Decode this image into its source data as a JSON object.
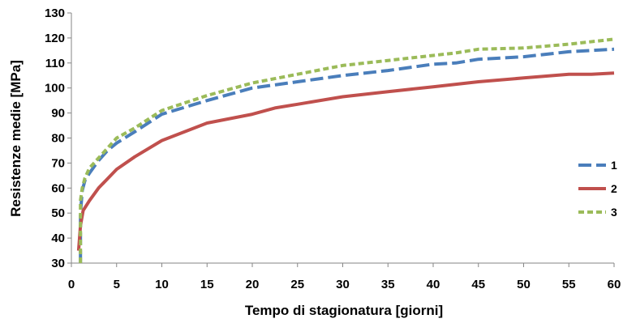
{
  "chart_data": {
    "type": "line",
    "xlabel": "Tempo di stagionatura [giorni]",
    "ylabel": "Resistenze medie [MPa]",
    "xlim": [
      0,
      60
    ],
    "ylim": [
      30,
      130
    ],
    "x_ticks": [
      "0",
      "5",
      "10",
      "15",
      "20",
      "25",
      "30",
      "35",
      "40",
      "45",
      "50",
      "55",
      "60"
    ],
    "y_ticks": [
      "30",
      "40",
      "50",
      "60",
      "70",
      "80",
      "90",
      "100",
      "110",
      "120",
      "130"
    ],
    "grid": false,
    "legend_position": "right",
    "series": [
      {
        "name": "1",
        "color": "#4a7ebb",
        "dash": "long-dash",
        "x": [
          1,
          1,
          1.2,
          1.5,
          2,
          3,
          4,
          5,
          7,
          10,
          15,
          20,
          25,
          30,
          35,
          40,
          42.5,
          45,
          50,
          55,
          60
        ],
        "y": [
          30,
          50,
          59,
          63,
          66,
          71,
          75,
          78,
          82.5,
          89.5,
          95,
          100,
          102.5,
          105,
          107,
          109.5,
          110,
          111.5,
          112.5,
          114.5,
          115.5
        ]
      },
      {
        "name": "2",
        "color": "#c0504d",
        "dash": "solid",
        "x": [
          0.8,
          1,
          1.3,
          2,
          3,
          5,
          7,
          10,
          15,
          20,
          22.5,
          25,
          30,
          35,
          40,
          45,
          50,
          55,
          57.5,
          60
        ],
        "y": [
          35,
          45,
          51,
          55,
          60,
          67.5,
          72.5,
          79,
          86,
          89.5,
          92,
          93.5,
          96.5,
          98.5,
          100.5,
          102.5,
          104,
          105.5,
          105.5,
          106
        ]
      },
      {
        "name": "3",
        "color": "#9bbb59",
        "dash": "short-dash",
        "x": [
          1,
          1,
          1.2,
          1.5,
          2,
          3,
          4,
          5,
          7,
          10,
          15,
          20,
          25,
          30,
          35,
          40,
          42.5,
          45,
          50,
          55,
          60
        ],
        "y": [
          30,
          55,
          60,
          64,
          68,
          72,
          76,
          80,
          84,
          91,
          97,
          102,
          105.5,
          109,
          111,
          113,
          114,
          115.5,
          116,
          117.5,
          119.5
        ]
      }
    ]
  }
}
